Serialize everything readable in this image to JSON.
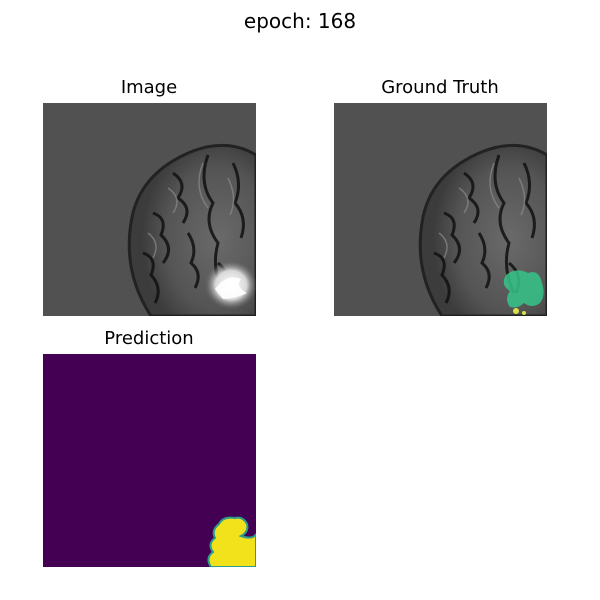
{
  "figure": {
    "suptitle": "epoch: 168",
    "panels": [
      {
        "title": "Image",
        "content": "brain-mri-slice"
      },
      {
        "title": "Ground Truth",
        "content": "brain-mri-slice-with-green-mask"
      },
      {
        "title": "Prediction",
        "content": "binary-segmentation-mask"
      }
    ]
  },
  "colors": {
    "background_gray": "#515151",
    "mask_green": "#35c487",
    "prediction_background": "#440154",
    "prediction_foreground": "#f2e21c"
  }
}
